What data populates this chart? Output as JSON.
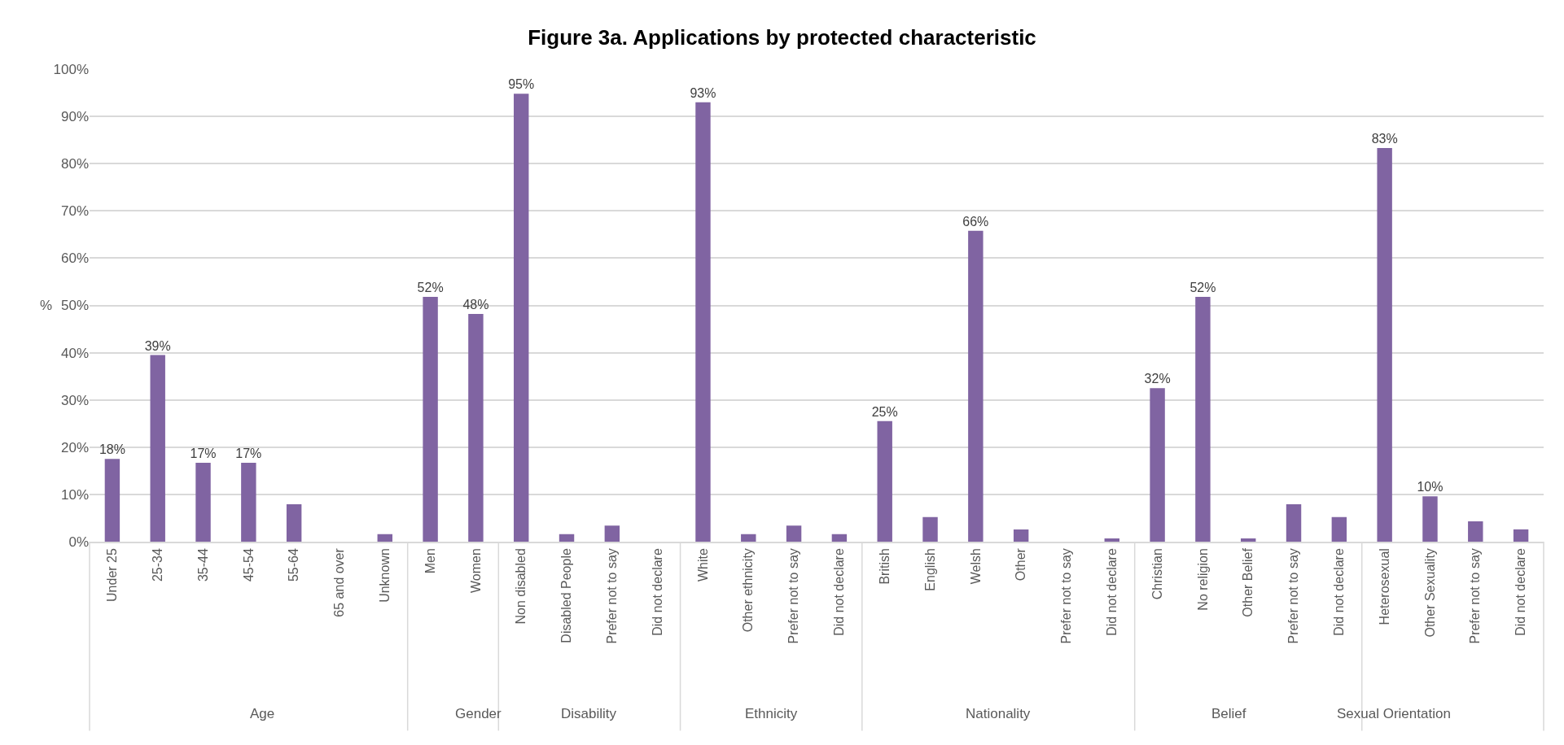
{
  "chart_data": [
    {
      "type": "other",
      "title": "Figure 3a. Applications by protected characteristic"
    },
    {
      "type": "bar",
      "ylabel": "%",
      "xlabel": "Age",
      "categories": [
        "Under 25",
        "25-34",
        "35-44",
        "45-54",
        "55-64",
        "65 and over",
        "Unknown"
      ],
      "values": [
        17.5,
        39.5,
        16.7,
        16.7,
        7.9,
        0,
        1.6
      ],
      "value_labels": [
        "18%",
        "39%",
        "17%",
        "17%",
        null,
        null,
        null
      ],
      "color": "#8064a2",
      "ylim": [
        0,
        100
      ],
      "yticks": [
        {
          "value": 0,
          "label": "0%"
        },
        {
          "value": 10,
          "label": "10%"
        },
        {
          "value": 20,
          "label": "20%"
        },
        {
          "value": 30,
          "label": "30%"
        },
        {
          "value": 40,
          "label": "40%"
        },
        {
          "value": 50,
          "label": "50%"
        },
        {
          "value": 60,
          "label": "60%"
        },
        {
          "value": 70,
          "label": "70%"
        },
        {
          "value": 80,
          "label": "80%"
        },
        {
          "value": 90,
          "label": "90%"
        },
        {
          "value": 100,
          "label": "100%"
        }
      ],
      "grid": "y",
      "legend": false
    },
    {
      "type": "bar",
      "xlabel": "Gender",
      "categories": [
        "Men",
        "Women"
      ],
      "values": [
        51.8,
        48.2
      ],
      "value_labels": [
        "52%",
        "48%"
      ],
      "color": "#8064a2",
      "ylim": [
        0,
        100
      ],
      "yticks": [
        {
          "value": 0,
          "label": null
        },
        {
          "value": 10,
          "label": null
        },
        {
          "value": 20,
          "label": null
        },
        {
          "value": 30,
          "label": null
        },
        {
          "value": 40,
          "label": null
        },
        {
          "value": 50,
          "label": null
        },
        {
          "value": 60,
          "label": null
        },
        {
          "value": 70,
          "label": null
        },
        {
          "value": 80,
          "label": null
        },
        {
          "value": 90,
          "label": null
        },
        {
          "value": 100,
          "label": null
        }
      ],
      "grid": "y",
      "legend": false,
      "tick_labels": "x"
    },
    {
      "type": "bar",
      "xlabel": "Disability",
      "categories": [
        "Non disabled",
        "Disabled People",
        "Prefer not to say",
        "Did not declare"
      ],
      "values": [
        94.8,
        1.6,
        3.4,
        0
      ],
      "value_labels": [
        "95%",
        null,
        null,
        null
      ],
      "color": "#8064a2",
      "ylim": [
        0,
        100
      ],
      "yticks": [
        {
          "value": 0,
          "label": null
        },
        {
          "value": 10,
          "label": null
        },
        {
          "value": 20,
          "label": null
        },
        {
          "value": 30,
          "label": null
        },
        {
          "value": 40,
          "label": null
        },
        {
          "value": 50,
          "label": null
        },
        {
          "value": 60,
          "label": null
        },
        {
          "value": 70,
          "label": null
        },
        {
          "value": 80,
          "label": null
        },
        {
          "value": 90,
          "label": null
        },
        {
          "value": 100,
          "label": null
        }
      ],
      "grid": "y",
      "legend": false,
      "tick_labels": "x"
    },
    {
      "type": "bar",
      "xlabel": "Ethnicity",
      "categories": [
        "White",
        "Other ethnicity",
        "Prefer not to say",
        "Did not declare"
      ],
      "values": [
        93,
        1.6,
        3.4,
        1.6
      ],
      "value_labels": [
        "93%",
        null,
        null,
        null
      ],
      "color": "#8064a2",
      "ylim": [
        0,
        100
      ],
      "yticks": [
        {
          "value": 0,
          "label": null
        },
        {
          "value": 10,
          "label": null
        },
        {
          "value": 20,
          "label": null
        },
        {
          "value": 30,
          "label": null
        },
        {
          "value": 40,
          "label": null
        },
        {
          "value": 50,
          "label": null
        },
        {
          "value": 60,
          "label": null
        },
        {
          "value": 70,
          "label": null
        },
        {
          "value": 80,
          "label": null
        },
        {
          "value": 90,
          "label": null
        },
        {
          "value": 100,
          "label": null
        }
      ],
      "grid": "y",
      "legend": false,
      "tick_labels": "x"
    },
    {
      "type": "bar",
      "xlabel": "Nationality",
      "categories": [
        "British",
        "English",
        "Welsh",
        "Other",
        "Prefer not to say",
        "Did not declare"
      ],
      "values": [
        25.5,
        5.2,
        65.8,
        2.6,
        0,
        0.7
      ],
      "value_labels": [
        "25%",
        null,
        "66%",
        null,
        null,
        null
      ],
      "color": "#8064a2",
      "ylim": [
        0,
        100
      ],
      "yticks": [
        {
          "value": 0,
          "label": null
        },
        {
          "value": 10,
          "label": null
        },
        {
          "value": 20,
          "label": null
        },
        {
          "value": 30,
          "label": null
        },
        {
          "value": 40,
          "label": null
        },
        {
          "value": 50,
          "label": null
        },
        {
          "value": 60,
          "label": null
        },
        {
          "value": 70,
          "label": null
        },
        {
          "value": 80,
          "label": null
        },
        {
          "value": 90,
          "label": null
        },
        {
          "value": 100,
          "label": null
        }
      ],
      "grid": "y",
      "legend": false,
      "tick_labels": "x"
    },
    {
      "type": "bar",
      "xlabel": "Belief",
      "categories": [
        "Christian",
        "No religion",
        "Other Belief",
        "Prefer not to say",
        "Did not declare"
      ],
      "values": [
        32.5,
        51.8,
        0.7,
        7.9,
        5.2
      ],
      "value_labels": [
        "32%",
        "52%",
        null,
        null,
        null
      ],
      "color": "#8064a2",
      "ylim": [
        0,
        100
      ],
      "yticks": [
        {
          "value": 0,
          "label": null
        },
        {
          "value": 10,
          "label": null
        },
        {
          "value": 20,
          "label": null
        },
        {
          "value": 30,
          "label": null
        },
        {
          "value": 40,
          "label": null
        },
        {
          "value": 50,
          "label": null
        },
        {
          "value": 60,
          "label": null
        },
        {
          "value": 70,
          "label": null
        },
        {
          "value": 80,
          "label": null
        },
        {
          "value": 90,
          "label": null
        },
        {
          "value": 100,
          "label": null
        }
      ],
      "grid": "y",
      "legend": false,
      "tick_labels": "x"
    },
    {
      "type": "bar",
      "xlabel": "Sexual Orientation",
      "categories": [
        "Heterosexual",
        "Other Sexuality",
        "Prefer not to say",
        "Did not declare"
      ],
      "values": [
        83.3,
        9.6,
        4.3,
        2.6
      ],
      "value_labels": [
        "83%",
        "10%",
        null,
        null
      ],
      "color": "#8064a2",
      "ylim": [
        0,
        100
      ],
      "yticks": [
        {
          "value": 0,
          "label": null
        },
        {
          "value": 10,
          "label": null
        },
        {
          "value": 20,
          "label": null
        },
        {
          "value": 30,
          "label": null
        },
        {
          "value": 40,
          "label": null
        },
        {
          "value": 50,
          "label": null
        },
        {
          "value": 60,
          "label": null
        },
        {
          "value": 70,
          "label": null
        },
        {
          "value": 80,
          "label": null
        },
        {
          "value": 90,
          "label": null
        },
        {
          "value": 100,
          "label": null
        }
      ],
      "grid": "y",
      "legend": false,
      "tick_labels": "x"
    }
  ]
}
